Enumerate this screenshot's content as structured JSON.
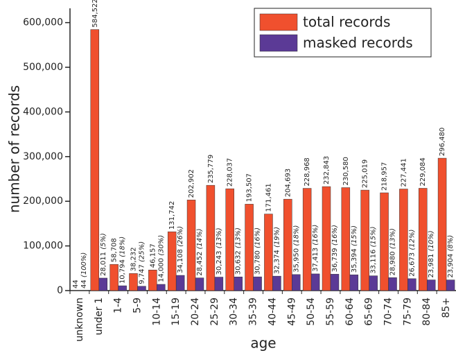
{
  "chart_data": {
    "type": "bar",
    "xlabel": "age",
    "ylabel": "number of records",
    "categories": [
      "unknown",
      "under 1",
      "1-4",
      "5-9",
      "10-14",
      "15-19",
      "20-24",
      "25-29",
      "30-34",
      "35-39",
      "40-44",
      "45-49",
      "50-54",
      "55-59",
      "60-64",
      "65-69",
      "70-74",
      "75-79",
      "80-84",
      "85+"
    ],
    "series": [
      {
        "name": "total records",
        "color": "#f0502e",
        "values": [
          44,
          584522,
          58708,
          38232,
          46157,
          131742,
          202902,
          235779,
          228037,
          193507,
          171461,
          204693,
          228968,
          232843,
          230580,
          225019,
          218957,
          227441,
          229084,
          296480
        ],
        "value_labels": [
          "44",
          "584,522",
          "58,708",
          "38,232",
          "46,157",
          "131,742",
          "202,902",
          "235,779",
          "228,037",
          "193,507",
          "171,461",
          "204,693",
          "228,968",
          "232,843",
          "230,580",
          "225,019",
          "218,957",
          "227,441",
          "229,084",
          "296,480"
        ]
      },
      {
        "name": "masked records",
        "color": "#5b3a96",
        "values": [
          44,
          28011,
          10794,
          9747,
          14000,
          34108,
          28452,
          30243,
          30632,
          30780,
          32374,
          35950,
          37413,
          36739,
          35394,
          33116,
          28980,
          26673,
          23981,
          23904
        ],
        "value_labels": [
          "44 (100%)",
          "28,011 (5%)",
          "10,794 (18%)",
          "9,747 (25%)",
          "14,000 (30%)",
          "34,108 (26%)",
          "28,452 (14%)",
          "30,243 (13%)",
          "30,632 (13%)",
          "30,780 (16%)",
          "32,374 (19%)",
          "35,950 (18%)",
          "37,413 (16%)",
          "36,739 (16%)",
          "35,394 (15%)",
          "33,116 (15%)",
          "28,980 (13%)",
          "26,673 (12%)",
          "23,981 (10%)",
          "23,904 (8%)"
        ]
      }
    ],
    "ylim": [
      0,
      632000
    ],
    "yticks": [
      {
        "value": 0,
        "label": "0"
      },
      {
        "value": 100000,
        "label": "100,000"
      },
      {
        "value": 200000,
        "label": "200,000"
      },
      {
        "value": 300000,
        "label": "300,000"
      },
      {
        "value": 400000,
        "label": "400,000"
      },
      {
        "value": 500000,
        "label": "500,000"
      },
      {
        "value": 600000,
        "label": "600,000"
      }
    ],
    "legend": "top-right"
  }
}
